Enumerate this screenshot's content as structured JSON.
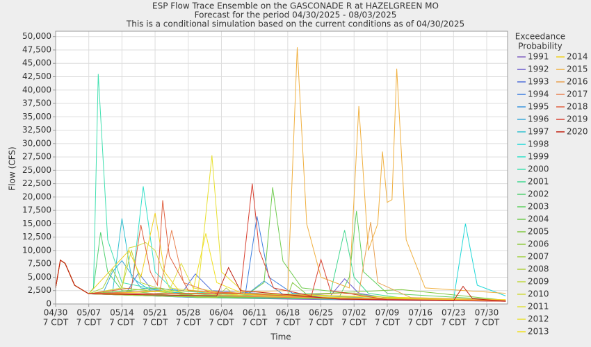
{
  "chart_data": {
    "type": "line",
    "title": "ESP Flow Trace Ensemble on the GASCONADE R at HAZELGREEN MO",
    "subtitle": "Forecast for the period 04/30/2025 - 08/03/2025",
    "subtitle2": "This is a conditional simulation based on the current conditions as of 04/30/2025",
    "x_label": "Time",
    "y_label": "Flow (CFS)",
    "legend_title": [
      "Exceedance",
      "Probability"
    ],
    "grid": true,
    "xlim": [
      0,
      95.4
    ],
    "ylim": [
      0,
      51000
    ],
    "xticks": [
      {
        "value": 0,
        "label": "04/30",
        "hour": "7 CDT"
      },
      {
        "value": 7,
        "label": "05/07",
        "hour": "7 CDT"
      },
      {
        "value": 14,
        "label": "05/14",
        "hour": "7 CDT"
      },
      {
        "value": 21,
        "label": "05/21",
        "hour": "7 CDT"
      },
      {
        "value": 28,
        "label": "05/28",
        "hour": "7 CDT"
      },
      {
        "value": 35,
        "label": "06/04",
        "hour": "7 CDT"
      },
      {
        "value": 42,
        "label": "06/11",
        "hour": "7 CDT"
      },
      {
        "value": 49,
        "label": "06/18",
        "hour": "7 CDT"
      },
      {
        "value": 56,
        "label": "06/25",
        "hour": "7 CDT"
      },
      {
        "value": 63,
        "label": "07/02",
        "hour": "7 CDT"
      },
      {
        "value": 70,
        "label": "07/09",
        "hour": "7 CDT"
      },
      {
        "value": 77,
        "label": "07/16",
        "hour": "7 CDT"
      },
      {
        "value": 84,
        "label": "07/23",
        "hour": "7 CDT"
      },
      {
        "value": 91,
        "label": "07/30",
        "hour": "7 CDT"
      }
    ],
    "yticks": [
      0,
      {
        "value": 2500,
        "label": "2,500"
      },
      {
        "value": 5000,
        "label": "5,000"
      },
      {
        "value": 7500,
        "label": "7,500"
      },
      {
        "value": 10000,
        "label": "10,000"
      },
      {
        "value": 12500,
        "label": "12,500"
      },
      {
        "value": 15000,
        "label": "15,000"
      },
      {
        "value": 17500,
        "label": "17,500"
      },
      {
        "value": 20000,
        "label": "20,000"
      },
      {
        "value": 22500,
        "label": "22,500"
      },
      {
        "value": 25000,
        "label": "25,000"
      },
      {
        "value": 27500,
        "label": "27,500"
      },
      {
        "value": 30000,
        "label": "30,000"
      },
      {
        "value": 32500,
        "label": "32,500"
      },
      {
        "value": 35000,
        "label": "35,000"
      },
      {
        "value": 37500,
        "label": "37,500"
      },
      {
        "value": 40000,
        "label": "40,000"
      },
      {
        "value": 42500,
        "label": "42,500"
      },
      {
        "value": 45000,
        "label": "45,000"
      },
      {
        "value": 47500,
        "label": "47,500"
      },
      {
        "value": 50000,
        "label": "50,000"
      }
    ],
    "series": [
      {
        "name": "1991",
        "color": "#8060c0",
        "x": [
          0,
          1,
          2,
          4,
          7,
          20,
          30,
          50,
          70,
          95
        ],
        "values": [
          3000,
          8200,
          7600,
          3500,
          1900,
          1500,
          1200,
          900,
          700,
          500
        ]
      },
      {
        "name": "1992",
        "color": "#6a5acd",
        "x": [
          0,
          1,
          2,
          4,
          7,
          40,
          58,
          61,
          64,
          70,
          95
        ],
        "values": [
          3000,
          8200,
          7600,
          3500,
          1900,
          1300,
          1500,
          4700,
          2000,
          1100,
          700
        ]
      },
      {
        "name": "1993",
        "color": "#4f6fd8",
        "x": [
          0,
          1,
          2,
          4,
          7,
          15,
          17.5,
          20,
          27,
          29.5,
          33,
          60,
          95
        ],
        "values": [
          3000,
          8200,
          7600,
          3500,
          1900,
          2200,
          5800,
          3000,
          2500,
          5600,
          2500,
          1100,
          600
        ]
      },
      {
        "name": "1994",
        "color": "#3d7fe0",
        "x": [
          0,
          1,
          2,
          4,
          7,
          40,
          42.5,
          45,
          50,
          70,
          95
        ],
        "values": [
          3000,
          8200,
          7600,
          3500,
          1900,
          1500,
          16400,
          5000,
          2000,
          900,
          600
        ]
      },
      {
        "name": "1995",
        "color": "#3a95dd",
        "x": [
          0,
          1,
          2,
          4,
          7,
          30,
          40,
          44,
          48,
          70,
          95
        ],
        "values": [
          3000,
          8200,
          7600,
          3500,
          1900,
          1200,
          1500,
          4300,
          1800,
          1000,
          700
        ]
      },
      {
        "name": "1996",
        "color": "#3aa8d8",
        "x": [
          0,
          1,
          2,
          4,
          7,
          10,
          12,
          14,
          18,
          30,
          60,
          95
        ],
        "values": [
          3000,
          8200,
          7600,
          3500,
          1900,
          2000,
          6000,
          8100,
          3000,
          1500,
          900,
          600
        ]
      },
      {
        "name": "1997",
        "color": "#30c0d0",
        "x": [
          0,
          1,
          2,
          4,
          7,
          12,
          14,
          16,
          20,
          40,
          95
        ],
        "values": [
          3000,
          8200,
          7600,
          3500,
          1900,
          2000,
          16000,
          5000,
          2500,
          1200,
          600
        ]
      },
      {
        "name": "1998",
        "color": "#20d8d8",
        "x": [
          0,
          1,
          2,
          4,
          7,
          30,
          60,
          84,
          86.5,
          89,
          95
        ],
        "values": [
          3000,
          8200,
          7600,
          3500,
          1900,
          1500,
          1000,
          800,
          15000,
          3500,
          1500
        ]
      },
      {
        "name": "1999",
        "color": "#30e0c8",
        "x": [
          0,
          1,
          2,
          4,
          7,
          16,
          18.5,
          21,
          25,
          50,
          95
        ],
        "values": [
          3000,
          8200,
          7600,
          3500,
          1900,
          2500,
          22000,
          6000,
          2500,
          1000,
          600
        ]
      },
      {
        "name": "2000",
        "color": "#40e0b0",
        "x": [
          0,
          1,
          2,
          4,
          7,
          8,
          9,
          11,
          14,
          30,
          95
        ],
        "values": [
          3000,
          8200,
          7600,
          3500,
          1900,
          3000,
          43000,
          12000,
          4000,
          1200,
          600
        ]
      },
      {
        "name": "2001",
        "color": "#40d890",
        "x": [
          0,
          1,
          2,
          4,
          7,
          30,
          58,
          61,
          63,
          66,
          75,
          95
        ],
        "values": [
          3000,
          8200,
          7600,
          3500,
          1900,
          1500,
          2000,
          13800,
          5000,
          2000,
          900,
          600
        ]
      },
      {
        "name": "2002",
        "color": "#50d070",
        "x": [
          0,
          1,
          2,
          4,
          7,
          8,
          9.5,
          11,
          14,
          30,
          95
        ],
        "values": [
          3000,
          8200,
          7600,
          3500,
          1900,
          3000,
          13400,
          6000,
          2500,
          1200,
          600
        ]
      },
      {
        "name": "2003",
        "color": "#60d060",
        "x": [
          0,
          1,
          2,
          4,
          7,
          30,
          60,
          62,
          63.5,
          65,
          70,
          95
        ],
        "values": [
          3000,
          8200,
          7600,
          3500,
          1900,
          1500,
          1500,
          5000,
          17400,
          6000,
          2000,
          700
        ]
      },
      {
        "name": "2004",
        "color": "#70cc50",
        "x": [
          0,
          1,
          2,
          4,
          7,
          40,
          44,
          45.8,
          48,
          52,
          70,
          95
        ],
        "values": [
          3000,
          8200,
          7600,
          3500,
          1900,
          1500,
          4000,
          21800,
          8000,
          3000,
          1200,
          600
        ]
      },
      {
        "name": "2005",
        "color": "#80c840",
        "x": [
          0,
          1,
          2,
          4,
          7,
          20,
          40,
          49,
          50,
          53,
          73,
          95
        ],
        "values": [
          3000,
          8200,
          7600,
          3500,
          1900,
          1500,
          1200,
          1500,
          4000,
          1800,
          2700,
          700
        ]
      },
      {
        "name": "2006",
        "color": "#90cc40",
        "x": [
          0,
          1,
          2,
          4,
          7,
          15,
          22,
          30,
          60,
          95
        ],
        "values": [
          3000,
          8200,
          7600,
          3500,
          1900,
          2500,
          3000,
          1500,
          1000,
          600
        ]
      },
      {
        "name": "2007",
        "color": "#a0d040",
        "x": [
          0,
          1,
          2,
          4,
          7,
          10,
          12,
          14,
          30,
          95
        ],
        "values": [
          3000,
          8200,
          7600,
          3500,
          1900,
          3000,
          6500,
          3000,
          1500,
          700
        ]
      },
      {
        "name": "2008",
        "color": "#b0d040",
        "x": [
          0,
          1,
          2,
          4,
          7,
          20,
          34,
          36,
          38,
          70,
          95
        ],
        "values": [
          3000,
          8200,
          7600,
          3500,
          1900,
          1500,
          1200,
          3000,
          1500,
          1000,
          600
        ]
      },
      {
        "name": "2009",
        "color": "#c0d840",
        "x": [
          0,
          1,
          2,
          4,
          7,
          14,
          16,
          18,
          25,
          60,
          95
        ],
        "values": [
          3000,
          8200,
          7600,
          3500,
          1900,
          3000,
          10000,
          4000,
          2000,
          1000,
          600
        ]
      },
      {
        "name": "2010",
        "color": "#d0dc40",
        "x": [
          0,
          1,
          2,
          4,
          7,
          14,
          15.5,
          17,
          19,
          21,
          24,
          40,
          95
        ],
        "values": [
          3000,
          8200,
          7600,
          3500,
          1900,
          3000,
          10500,
          10800,
          11500,
          10000,
          3000,
          1500,
          700
        ]
      },
      {
        "name": "2011",
        "color": "#e0e040",
        "x": [
          0,
          1,
          2,
          4,
          7,
          24,
          26.5,
          29,
          40,
          95
        ],
        "values": [
          3000,
          8200,
          7600,
          3500,
          1900,
          2500,
          7600,
          3000,
          1500,
          700
        ]
      },
      {
        "name": "2012",
        "color": "#e8e030",
        "x": [
          0,
          1,
          2,
          4,
          7,
          30,
          33,
          35,
          40,
          95
        ],
        "values": [
          3000,
          8200,
          7600,
          3500,
          1900,
          2000,
          27800,
          6000,
          2000,
          700
        ]
      },
      {
        "name": "2013",
        "color": "#f0e020",
        "x": [
          0,
          1,
          2,
          4,
          7,
          29,
          31.7,
          34,
          40,
          95
        ],
        "values": [
          3000,
          8200,
          7600,
          3500,
          1900,
          2500,
          13200,
          4000,
          1800,
          800
        ]
      },
      {
        "name": "2014",
        "color": "#f0d020",
        "x": [
          0,
          1,
          2,
          4,
          7,
          15.5,
          18,
          21,
          23,
          26,
          50,
          95
        ],
        "values": [
          3000,
          8200,
          7600,
          3500,
          1900,
          10000,
          5000,
          17000,
          6000,
          2500,
          1300,
          700
        ]
      },
      {
        "name": "2015",
        "color": "#f0b040",
        "x": [
          0,
          1,
          2,
          4,
          7,
          30,
          49,
          51,
          53,
          56,
          62,
          64,
          66,
          68,
          69,
          70,
          71,
          72,
          74,
          78,
          95
        ],
        "values": [
          3000,
          8200,
          7600,
          3500,
          1900,
          2000,
          2500,
          48000,
          15000,
          5000,
          3000,
          37000,
          10000,
          15000,
          28500,
          19000,
          19500,
          44000,
          12000,
          3000,
          2000
        ]
      },
      {
        "name": "2016",
        "color": "#e8a050",
        "x": [
          0,
          1,
          2,
          4,
          7,
          40,
          64,
          66.5,
          68,
          75,
          95
        ],
        "values": [
          3000,
          8200,
          7600,
          3500,
          1900,
          1500,
          2000,
          15300,
          4000,
          1200,
          700
        ]
      },
      {
        "name": "2017",
        "color": "#e88050",
        "x": [
          0,
          1,
          2,
          4,
          7,
          22,
          24.5,
          27,
          35,
          60,
          95
        ],
        "values": [
          3000,
          8200,
          7600,
          3500,
          1900,
          2500,
          13800,
          4000,
          1500,
          1000,
          600
        ]
      },
      {
        "name": "2018",
        "color": "#e06040",
        "x": [
          0,
          1,
          2,
          4,
          7,
          16,
          18,
          20,
          21.5,
          22.6,
          24,
          28,
          60,
          95
        ],
        "values": [
          3000,
          8200,
          7600,
          3500,
          1900,
          3000,
          14800,
          6000,
          3500,
          19400,
          9000,
          2500,
          1000,
          500
        ]
      },
      {
        "name": "2019",
        "color": "#d84030",
        "x": [
          0,
          1,
          2,
          4,
          7,
          39,
          41.5,
          43,
          46,
          54,
          56,
          58,
          70,
          95
        ],
        "values": [
          3000,
          8200,
          7600,
          3500,
          1900,
          2000,
          22500,
          10000,
          3000,
          1500,
          8300,
          2500,
          800,
          500
        ]
      },
      {
        "name": "2020",
        "color": "#c02010",
        "x": [
          0,
          1,
          2,
          4,
          7,
          34,
          36.5,
          39,
          60,
          84,
          86,
          88,
          95
        ],
        "values": [
          3000,
          8200,
          7600,
          3500,
          1900,
          1500,
          6800,
          2500,
          900,
          600,
          3300,
          1000,
          500
        ]
      }
    ]
  }
}
